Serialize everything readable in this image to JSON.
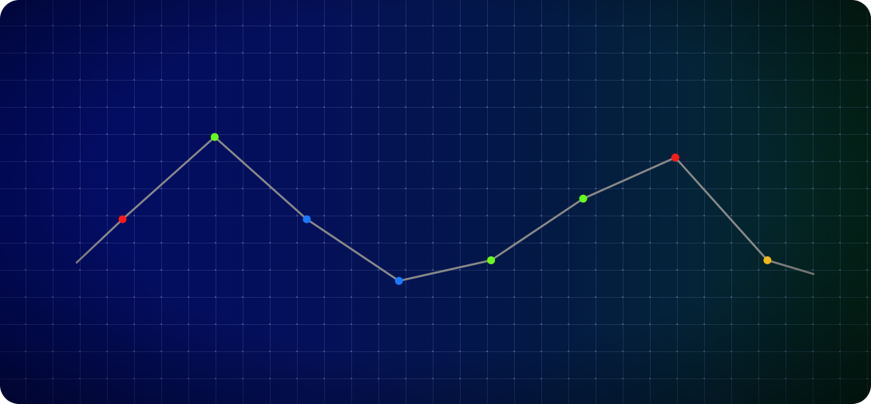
{
  "chart_data": {
    "type": "line",
    "x": [
      1,
      2,
      3,
      4,
      5,
      6,
      7,
      8
    ],
    "series": [
      {
        "values": [
          52,
          70,
          52,
          38.5,
          43,
          56.5,
          65.5,
          43
        ],
        "point_colors": [
          "#ff1a1a",
          "#66ff1a",
          "#1a7aff",
          "#1a7aff",
          "#66ff1a",
          "#66ff1a",
          "#ff1a1a",
          "#ffc21a"
        ]
      }
    ],
    "lead_in_value": 42.5,
    "lead_out_value": 40,
    "ylim": [
      0,
      100
    ],
    "grid": true,
    "line_color": "#8a8a8a"
  }
}
